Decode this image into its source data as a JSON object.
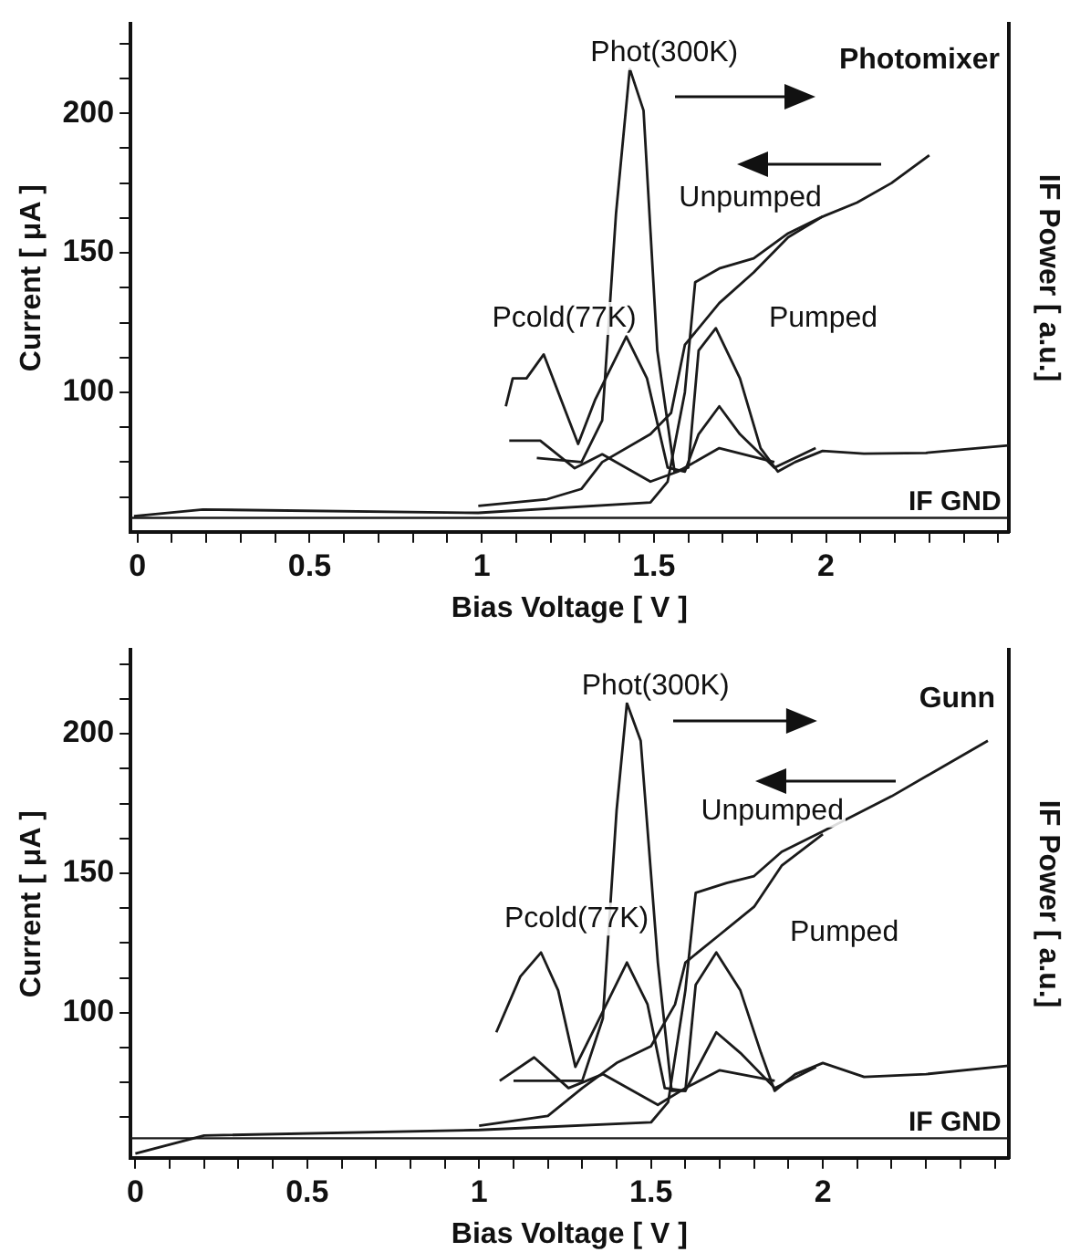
{
  "chart_data": [
    {
      "type": "line",
      "xlabel": "Bias Voltage [ V ]",
      "ylabel": "Current [ μA ]",
      "y2label": "IF Power [ a.u.]",
      "marker": "none",
      "line_style": "solid",
      "grid": false,
      "xlim": [
        -0.02,
        2.53
      ],
      "xticks": [
        0,
        {
          "value": 0.1,
          "label": null
        },
        {
          "value": 0.2,
          "label": null
        },
        {
          "value": 0.3,
          "label": null
        },
        {
          "value": 0.4,
          "label": null
        },
        0.5,
        {
          "value": 0.6,
          "label": null
        },
        {
          "value": 0.7,
          "label": null
        },
        {
          "value": 0.8,
          "label": null
        },
        {
          "value": 0.9,
          "label": null
        },
        1,
        {
          "value": 1.1,
          "label": null
        },
        {
          "value": 1.2,
          "label": null
        },
        {
          "value": 1.3,
          "label": null
        },
        {
          "value": 1.4,
          "label": null
        },
        1.5,
        {
          "value": 1.6,
          "label": null
        },
        {
          "value": 1.7,
          "label": null
        },
        {
          "value": 1.8,
          "label": null
        },
        {
          "value": 1.9,
          "label": null
        },
        2,
        {
          "value": 2.1,
          "label": null
        },
        {
          "value": 2.2,
          "label": null
        },
        {
          "value": 2.3,
          "label": null
        },
        {
          "value": 2.4,
          "label": null
        },
        {
          "value": 2.5,
          "label": null
        }
      ],
      "ylim": [
        50,
        232
      ],
      "yticks": [
        {
          "value": 62.5,
          "label": null
        },
        {
          "value": 75,
          "label": null
        },
        {
          "value": 87.5,
          "label": null
        },
        100,
        {
          "value": 112.5,
          "label": null
        },
        {
          "value": 125,
          "label": null
        },
        {
          "value": 137.5,
          "label": null
        },
        150,
        {
          "value": 162.5,
          "label": null
        },
        {
          "value": 175,
          "label": null
        },
        {
          "value": 187.5,
          "label": null
        },
        200,
        {
          "value": 212.5,
          "label": null
        },
        {
          "value": 225,
          "label": null
        }
      ],
      "series": [
        {
          "color": "#1a1a1a",
          "x": [
            -0.01,
            0.19,
            0.99,
            1.49,
            1.54,
            1.59,
            1.62,
            1.69,
            1.79,
            1.89,
            1.99,
            2.09,
            2.19,
            2.3
          ],
          "values": [
            55.6,
            58,
            56.8,
            60.5,
            68,
            100,
            139.5,
            144.4,
            148,
            157,
            163,
            168,
            175,
            185
          ]
        },
        {
          "color": "#1a1a1a",
          "x": [
            0.99,
            1.19,
            1.29,
            1.35,
            1.49,
            1.55,
            1.59,
            1.69,
            1.79,
            1.89,
            1.99
          ],
          "values": [
            59.3,
            61.7,
            65.4,
            75,
            85,
            92.6,
            117,
            132,
            143,
            155.6,
            163
          ]
        },
        {
          "color": "#1a1a1a",
          "x": [
            1.16,
            1.29,
            1.35,
            1.39,
            1.43,
            1.47,
            1.51,
            1.56,
            1.6,
            1.63,
            1.68,
            1.75,
            1.81,
            1.86,
            1.91,
            1.99,
            2.11,
            2.29,
            2.53
          ],
          "values": [
            76.5,
            75,
            90,
            164,
            216,
            201,
            115,
            71.6,
            73,
            115,
            123,
            105,
            80,
            71.6,
            75,
            79,
            78,
            78.3,
            81
          ]
        },
        {
          "color": "#1a1a1a",
          "x": [
            1.07,
            1.09,
            1.13,
            1.18,
            1.23,
            1.28,
            1.33,
            1.42,
            1.48,
            1.54,
            1.59,
            1.63,
            1.69,
            1.75,
            1.85,
            1.97
          ],
          "values": [
            95,
            105,
            105,
            113.6,
            97.5,
            81.5,
            97.5,
            120,
            105,
            73,
            71.6,
            85,
            95,
            85,
            73,
            80
          ]
        },
        {
          "color": "#1a1a1a",
          "x": [
            1.08,
            1.17,
            1.27,
            1.35,
            1.49,
            1.57,
            1.69,
            1.85
          ],
          "values": [
            82.7,
            82.7,
            72.8,
            77.8,
            68,
            71.6,
            80,
            75
          ]
        }
      ],
      "ref_lines": [
        {
          "axis": "y",
          "value": 55,
          "label": "IF GND",
          "color": "#1a1a1a"
        }
      ],
      "annotations": [
        "Photomixer",
        "Phot(300K)",
        "Pcold(77K)",
        "Unpumped",
        "Pumped"
      ]
    },
    {
      "type": "line",
      "xlabel": "Bias Voltage [ V ]",
      "ylabel": "Current [ μA ]",
      "y2label": "IF Power [ a.u.]",
      "marker": "none",
      "line_style": "solid",
      "grid": false,
      "xlim": [
        -0.014,
        2.54
      ],
      "xticks": [
        0,
        {
          "value": 0.1,
          "label": null
        },
        {
          "value": 0.2,
          "label": null
        },
        {
          "value": 0.3,
          "label": null
        },
        {
          "value": 0.4,
          "label": null
        },
        0.5,
        {
          "value": 0.6,
          "label": null
        },
        {
          "value": 0.7,
          "label": null
        },
        {
          "value": 0.8,
          "label": null
        },
        {
          "value": 0.9,
          "label": null
        },
        1,
        {
          "value": 1.1,
          "label": null
        },
        {
          "value": 1.2,
          "label": null
        },
        {
          "value": 1.3,
          "label": null
        },
        {
          "value": 1.4,
          "label": null
        },
        1.5,
        {
          "value": 1.6,
          "label": null
        },
        {
          "value": 1.7,
          "label": null
        },
        {
          "value": 1.8,
          "label": null
        },
        {
          "value": 1.9,
          "label": null
        },
        2,
        {
          "value": 2.1,
          "label": null
        },
        {
          "value": 2.2,
          "label": null
        },
        {
          "value": 2.3,
          "label": null
        },
        {
          "value": 2.4,
          "label": null
        },
        {
          "value": 2.5,
          "label": null
        }
      ],
      "ylim": [
        48,
        230
      ],
      "yticks": [
        {
          "value": 62.5,
          "label": null
        },
        {
          "value": 75,
          "label": null
        },
        {
          "value": 87.5,
          "label": null
        },
        100,
        {
          "value": 112.5,
          "label": null
        },
        {
          "value": 125,
          "label": null
        },
        {
          "value": 137.5,
          "label": null
        },
        150,
        {
          "value": 162.5,
          "label": null
        },
        {
          "value": 175,
          "label": null
        },
        {
          "value": 187.5,
          "label": null
        },
        200,
        {
          "value": 212.5,
          "label": null
        },
        {
          "value": 225,
          "label": null
        }
      ],
      "series": [
        {
          "color": "#1a1a1a",
          "x": [
            0,
            0.2,
            1,
            1.5,
            1.55,
            1.6,
            1.63,
            1.72,
            1.8,
            1.88,
            2,
            2.2,
            2.48
          ],
          "values": [
            49.5,
            56,
            58,
            60.7,
            68,
            108,
            143,
            146.5,
            149,
            157.7,
            165,
            177.6,
            197.5
          ]
        },
        {
          "color": "#1a1a1a",
          "x": [
            1,
            1.2,
            1.3,
            1.4,
            1.5,
            1.57,
            1.6,
            1.7,
            1.8,
            1.88,
            2
          ],
          "values": [
            59.5,
            63,
            73,
            82,
            88,
            103,
            118,
            128,
            138,
            152.7,
            164
          ]
        },
        {
          "color": "#1a1a1a",
          "x": [
            1.1,
            1.3,
            1.36,
            1.4,
            1.43,
            1.47,
            1.52,
            1.56,
            1.6,
            1.63,
            1.69,
            1.76,
            1.82,
            1.86,
            1.92,
            2,
            2.12,
            2.3,
            2.54
          ],
          "values": [
            75.6,
            75.6,
            98,
            172.6,
            211,
            197.5,
            118,
            72,
            72,
            110,
            121.6,
            108,
            85.6,
            72,
            78,
            82,
            77,
            78,
            81
          ]
        },
        {
          "color": "#1a1a1a",
          "x": [
            1.05,
            1.12,
            1.18,
            1.23,
            1.28,
            1.34,
            1.43,
            1.49,
            1.54,
            1.6,
            1.69,
            1.76,
            1.86,
            1.98
          ],
          "values": [
            93,
            113,
            121.6,
            108,
            80.6,
            95.5,
            118,
            103,
            73,
            72,
            93,
            85.6,
            73,
            80.6
          ]
        },
        {
          "color": "#1a1a1a",
          "x": [
            1.06,
            1.16,
            1.26,
            1.36,
            1.52,
            1.6,
            1.7,
            1.86
          ],
          "values": [
            75.6,
            84,
            73,
            78,
            67,
            73,
            79.4,
            75.6
          ]
        }
      ],
      "ref_lines": [
        {
          "axis": "y",
          "value": 55,
          "label": "IF GND",
          "color": "#1a1a1a"
        }
      ],
      "annotations": [
        "Gunn",
        "Phot(300K)",
        "Pcold(77K)",
        "Unpumped",
        "Pumped"
      ]
    }
  ]
}
